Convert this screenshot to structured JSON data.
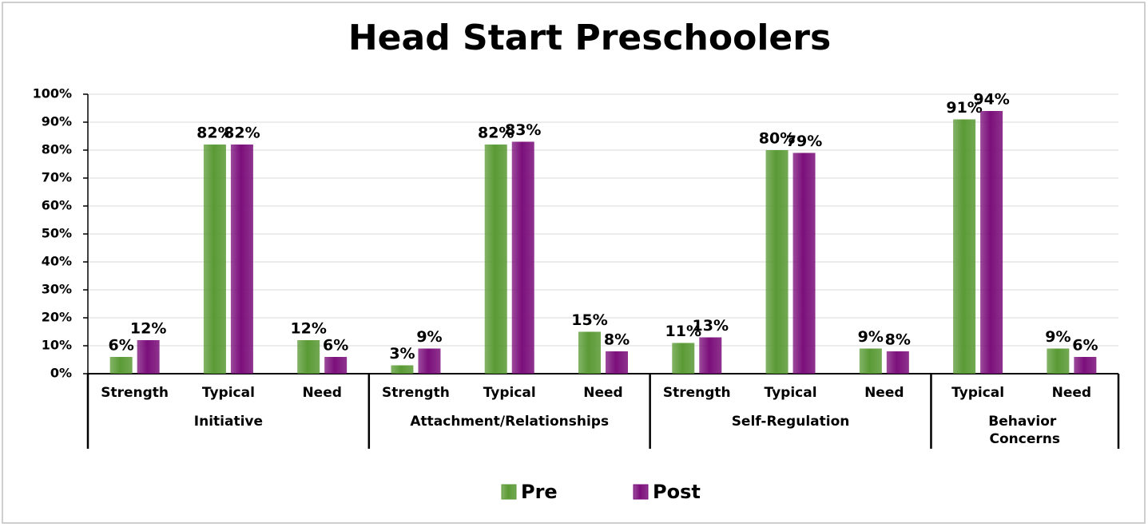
{
  "chart_data": {
    "type": "bar",
    "title": "Head Start Preschoolers",
    "groups": [
      {
        "name": "Initiative",
        "categories": [
          "Strength",
          "Typical",
          "Need"
        ]
      },
      {
        "name": "Attachment/Relationships",
        "categories": [
          "Strength",
          "Typical",
          "Need"
        ]
      },
      {
        "name": "Self-Regulation",
        "categories": [
          "Strength",
          "Typical",
          "Need"
        ]
      },
      {
        "name": "Behavior Concerns",
        "categories": [
          "Typical",
          "Need"
        ]
      }
    ],
    "series": [
      {
        "name": "Pre",
        "color": "#5a9a35",
        "values": [
          6,
          82,
          12,
          3,
          82,
          15,
          11,
          80,
          9,
          91,
          9
        ],
        "value_labels": [
          "6%",
          "82%",
          "12%",
          "3%",
          "82%",
          "15%",
          "11%",
          "80%",
          "9%",
          "91%",
          "9%"
        ]
      },
      {
        "name": "Post",
        "color": "#7b0f7b",
        "values": [
          12,
          82,
          6,
          9,
          83,
          8,
          13,
          79,
          8,
          94,
          6
        ],
        "value_labels": [
          "12%",
          "82%",
          "6%",
          "9%",
          "83%",
          "8%",
          "13%",
          "79%",
          "8%",
          "94%",
          "6%"
        ]
      }
    ],
    "ylim": [
      0,
      100
    ],
    "yticks": [
      {
        "value": 0,
        "label": "0%"
      },
      {
        "value": 10,
        "label": "10%"
      },
      {
        "value": 20,
        "label": "20%"
      },
      {
        "value": 30,
        "label": "30%"
      },
      {
        "value": 40,
        "label": "40%"
      },
      {
        "value": 50,
        "label": "50%"
      },
      {
        "value": 60,
        "label": "60%"
      },
      {
        "value": 70,
        "label": "70%"
      },
      {
        "value": 80,
        "label": "80%"
      },
      {
        "value": 90,
        "label": "90%"
      },
      {
        "value": 100,
        "label": "100%"
      }
    ],
    "grid": true,
    "legend": "bottom"
  }
}
